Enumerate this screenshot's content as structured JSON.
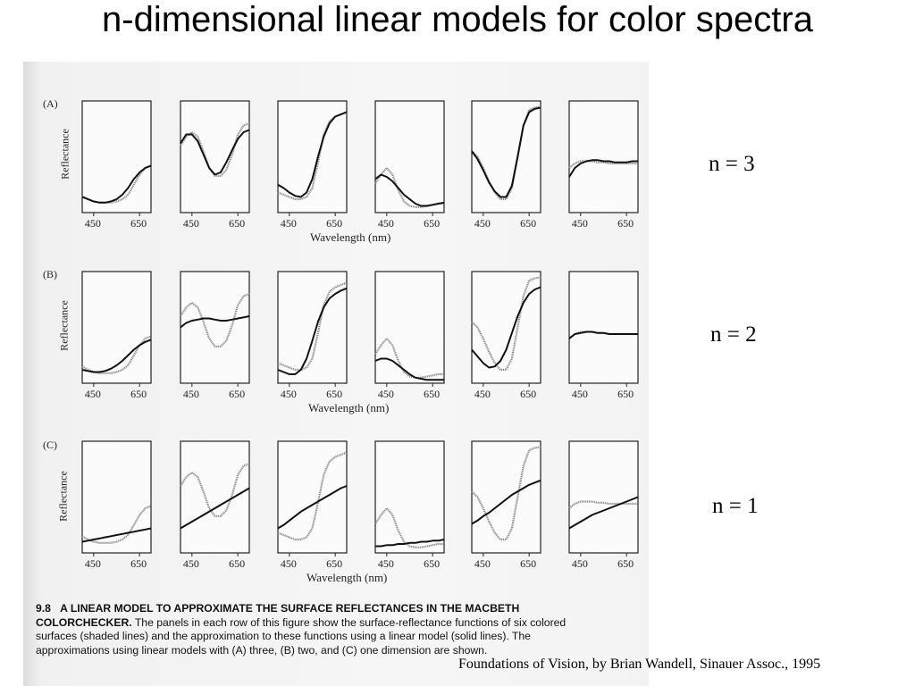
{
  "title": "n-dimensional linear models for color spectra",
  "figure": {
    "rows": [
      {
        "label": "(A)",
        "n_label": "n = 3"
      },
      {
        "label": "(B)",
        "n_label": "n = 2"
      },
      {
        "label": "(C)",
        "n_label": "n = 1"
      }
    ],
    "ylabel": "Reflectance",
    "xlabel": "Wavelength (nm)",
    "ticks": [
      "450",
      "650"
    ],
    "caption": {
      "number": "9.8",
      "heading": "A LINEAR MODEL TO APPROXIMATE THE SURFACE REFLECTANCES IN THE MACBETH COLORCHECKER.",
      "body": "The panels in each row of this figure show the surface-reflectance functions of six colored surfaces (shaded lines) and the approximation to these functions using a linear model (solid lines). The approximations using linear models with (A) three, (B) two, and (C) one dimension are shown."
    }
  },
  "credit": "Foundations of Vision, by Brian Wandell, Sinauer Assoc., 1995",
  "chart_data": {
    "type": "line",
    "x": [
      400,
      425,
      450,
      475,
      500,
      525,
      550,
      575,
      600,
      625,
      650,
      675,
      700
    ],
    "xlabel": "Wavelength (nm)",
    "ylabel": "Reflectance",
    "surfaces": [
      {
        "measured": [
          0.15,
          0.12,
          0.1,
          0.09,
          0.09,
          0.09,
          0.1,
          0.12,
          0.16,
          0.25,
          0.34,
          0.4,
          0.42
        ],
        "approx": {
          "n3": [
            0.14,
            0.12,
            0.1,
            0.09,
            0.09,
            0.1,
            0.12,
            0.16,
            0.22,
            0.3,
            0.36,
            0.4,
            0.42
          ],
          "n2": [
            0.12,
            0.11,
            0.1,
            0.1,
            0.11,
            0.13,
            0.16,
            0.2,
            0.25,
            0.3,
            0.34,
            0.37,
            0.39
          ],
          "n1": [
            0.1,
            0.11,
            0.12,
            0.13,
            0.14,
            0.15,
            0.16,
            0.17,
            0.18,
            0.19,
            0.2,
            0.21,
            0.22
          ]
        }
      },
      {
        "measured": [
          0.6,
          0.68,
          0.72,
          0.68,
          0.55,
          0.4,
          0.33,
          0.33,
          0.38,
          0.52,
          0.7,
          0.78,
          0.8
        ],
        "approx": {
          "n3": [
            0.62,
            0.7,
            0.7,
            0.64,
            0.52,
            0.4,
            0.34,
            0.36,
            0.45,
            0.56,
            0.66,
            0.72,
            0.74
          ],
          "n2": [
            0.5,
            0.54,
            0.56,
            0.57,
            0.58,
            0.58,
            0.57,
            0.56,
            0.56,
            0.57,
            0.58,
            0.59,
            0.6
          ],
          "n1": [
            0.22,
            0.25,
            0.28,
            0.31,
            0.34,
            0.37,
            0.4,
            0.43,
            0.46,
            0.49,
            0.52,
            0.55,
            0.58
          ]
        }
      },
      {
        "measured": [
          0.18,
          0.16,
          0.14,
          0.12,
          0.12,
          0.14,
          0.22,
          0.45,
          0.7,
          0.82,
          0.86,
          0.88,
          0.9
        ],
        "approx": {
          "n3": [
            0.25,
            0.22,
            0.18,
            0.15,
            0.14,
            0.18,
            0.3,
            0.5,
            0.68,
            0.8,
            0.86,
            0.88,
            0.9
          ],
          "n2": [
            0.12,
            0.1,
            0.08,
            0.08,
            0.12,
            0.22,
            0.38,
            0.55,
            0.68,
            0.76,
            0.8,
            0.83,
            0.85
          ],
          "n1": [
            0.22,
            0.25,
            0.29,
            0.33,
            0.37,
            0.4,
            0.43,
            0.46,
            0.49,
            0.52,
            0.55,
            0.58,
            0.6
          ]
        }
      },
      {
        "measured": [
          0.26,
          0.34,
          0.4,
          0.34,
          0.2,
          0.1,
          0.06,
          0.05,
          0.05,
          0.06,
          0.07,
          0.08,
          0.08
        ],
        "approx": {
          "n3": [
            0.3,
            0.34,
            0.32,
            0.28,
            0.22,
            0.16,
            0.12,
            0.08,
            0.06,
            0.06,
            0.07,
            0.08,
            0.09
          ],
          "n2": [
            0.2,
            0.22,
            0.22,
            0.2,
            0.16,
            0.12,
            0.08,
            0.05,
            0.04,
            0.03,
            0.03,
            0.03,
            0.03
          ],
          "n1": [
            0.06,
            0.06,
            0.07,
            0.07,
            0.08,
            0.08,
            0.09,
            0.09,
            0.1,
            0.1,
            0.11,
            0.11,
            0.12
          ]
        }
      },
      {
        "measured": [
          0.55,
          0.5,
          0.4,
          0.28,
          0.18,
          0.12,
          0.12,
          0.22,
          0.5,
          0.78,
          0.92,
          0.94,
          0.95
        ],
        "approx": {
          "n3": [
            0.55,
            0.48,
            0.38,
            0.27,
            0.19,
            0.14,
            0.14,
            0.24,
            0.5,
            0.78,
            0.9,
            0.93,
            0.94
          ],
          "n2": [
            0.3,
            0.24,
            0.18,
            0.14,
            0.15,
            0.2,
            0.3,
            0.45,
            0.6,
            0.72,
            0.8,
            0.84,
            0.86
          ],
          "n1": [
            0.26,
            0.29,
            0.33,
            0.36,
            0.4,
            0.44,
            0.48,
            0.52,
            0.55,
            0.58,
            0.61,
            0.63,
            0.65
          ]
        }
      },
      {
        "measured": [
          0.4,
          0.44,
          0.46,
          0.46,
          0.46,
          0.45,
          0.45,
          0.44,
          0.44,
          0.44,
          0.44,
          0.44,
          0.44
        ],
        "approx": {
          "n3": [
            0.32,
            0.4,
            0.44,
            0.46,
            0.47,
            0.47,
            0.46,
            0.46,
            0.45,
            0.45,
            0.45,
            0.46,
            0.46
          ],
          "n2": [
            0.4,
            0.44,
            0.45,
            0.46,
            0.46,
            0.45,
            0.45,
            0.44,
            0.44,
            0.44,
            0.44,
            0.44,
            0.44
          ],
          "n1": [
            0.22,
            0.25,
            0.28,
            0.31,
            0.34,
            0.36,
            0.38,
            0.4,
            0.42,
            0.44,
            0.46,
            0.48,
            0.5
          ]
        }
      }
    ]
  }
}
